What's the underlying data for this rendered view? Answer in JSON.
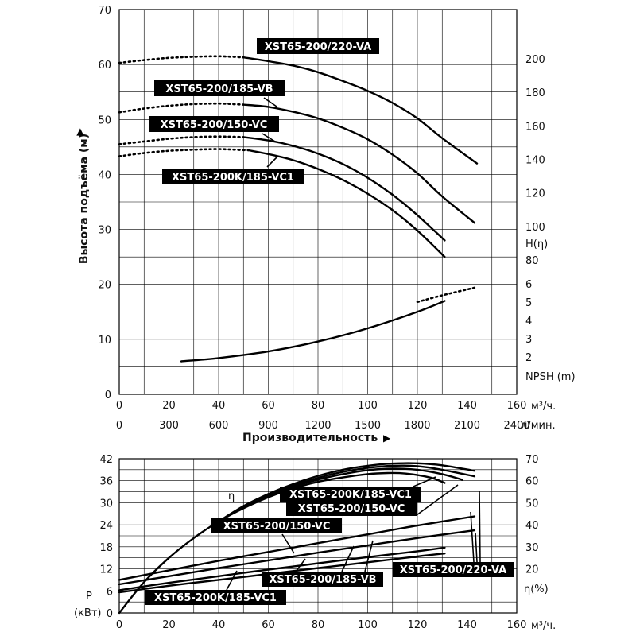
{
  "chart_data": [
    {
      "type": "line",
      "xlabel": "Производительность",
      "ylabel": "Высота подъёма (м)",
      "x_unit": "м³/ч.",
      "x2_unit": "л/мин.",
      "xlim": [
        0,
        160
      ],
      "ylim": [
        0,
        70
      ],
      "x_ticks": [
        0,
        20,
        40,
        60,
        80,
        100,
        120,
        140,
        160
      ],
      "x2_ticks": [
        "0",
        "300",
        "600",
        "900",
        "1200",
        "1500",
        "1800",
        "2100",
        "2400"
      ],
      "y_ticks": [
        0,
        10,
        20,
        30,
        40,
        50,
        60,
        70
      ],
      "right_head_label": "H(η)",
      "right_head_ticks": [
        80,
        100,
        120,
        140,
        160,
        180,
        200
      ],
      "right_npsh_label": "NPSH (m)",
      "right_npsh_ticks": [
        2,
        3,
        4,
        5,
        6
      ],
      "grid": true,
      "series": [
        {
          "name": "XST65-200/220-VA",
          "dotted": [
            [
              0,
              60.3
            ],
            [
              10,
              60.8
            ],
            [
              20,
              61.2
            ],
            [
              30,
              61.4
            ],
            [
              40,
              61.5
            ],
            [
              50,
              61.3
            ]
          ],
          "solid": [
            [
              50,
              61.3
            ],
            [
              60,
              60.6
            ],
            [
              70,
              59.8
            ],
            [
              80,
              58.6
            ],
            [
              90,
              57.0
            ],
            [
              100,
              55.2
            ],
            [
              110,
              53.0
            ],
            [
              120,
              50.2
            ],
            [
              130,
              46.6
            ],
            [
              144,
              42.0
            ]
          ]
        },
        {
          "name": "XST65-200/185-VB",
          "dotted": [
            [
              0,
              51.3
            ],
            [
              10,
              52.0
            ],
            [
              20,
              52.5
            ],
            [
              30,
              52.8
            ],
            [
              40,
              52.9
            ],
            [
              50,
              52.7
            ]
          ],
          "solid": [
            [
              50,
              52.7
            ],
            [
              60,
              52.3
            ],
            [
              70,
              51.4
            ],
            [
              80,
              50.2
            ],
            [
              90,
              48.5
            ],
            [
              100,
              46.4
            ],
            [
              110,
              43.6
            ],
            [
              120,
              40.2
            ],
            [
              130,
              36.0
            ],
            [
              143,
              31.2
            ]
          ]
        },
        {
          "name": "XST65-200/150-VC",
          "dotted": [
            [
              0,
              45.5
            ],
            [
              10,
              46.0
            ],
            [
              20,
              46.5
            ],
            [
              30,
              46.8
            ],
            [
              40,
              46.9
            ],
            [
              50,
              46.8
            ]
          ],
          "solid": [
            [
              50,
              46.8
            ],
            [
              60,
              46.2
            ],
            [
              70,
              45.2
            ],
            [
              80,
              43.8
            ],
            [
              90,
              41.9
            ],
            [
              100,
              39.4
            ],
            [
              110,
              36.3
            ],
            [
              120,
              32.6
            ],
            [
              131,
              28.0
            ]
          ]
        },
        {
          "name": "XST65-200K/185-VC1",
          "dotted": [
            [
              0,
              43.3
            ],
            [
              10,
              43.9
            ],
            [
              20,
              44.3
            ],
            [
              30,
              44.5
            ],
            [
              40,
              44.6
            ],
            [
              52,
              44.4
            ]
          ],
          "solid": [
            [
              52,
              44.4
            ],
            [
              60,
              43.7
            ],
            [
              70,
              42.6
            ],
            [
              80,
              41.0
            ],
            [
              90,
              39.0
            ],
            [
              100,
              36.5
            ],
            [
              110,
              33.5
            ],
            [
              120,
              29.8
            ],
            [
              131,
              25.0
            ]
          ]
        },
        {
          "name": "NPSH",
          "dotted": [
            [
              120,
              16.8
            ],
            [
              130,
              18.0
            ],
            [
              143,
              19.4
            ]
          ],
          "solid": [
            [
              25,
              6.0
            ],
            [
              40,
              6.6
            ],
            [
              60,
              7.8
            ],
            [
              80,
              9.6
            ],
            [
              100,
              12.0
            ],
            [
              120,
              15.0
            ],
            [
              131,
              17.0
            ]
          ]
        }
      ]
    },
    {
      "type": "line",
      "xlabel": "",
      "ylabel": "P (кВт)",
      "ylabel_line1": "P",
      "ylabel_line2": "(кВт)",
      "x_unit": "м³/ч.",
      "xlim": [
        0,
        160
      ],
      "ylim": [
        0,
        42
      ],
      "x_ticks": [
        0,
        20,
        40,
        60,
        80,
        100,
        120,
        140,
        160
      ],
      "y_ticks": [
        0,
        6,
        12,
        18,
        24,
        30,
        36,
        42
      ],
      "right_label": "η(%)",
      "right_ticks": [
        20,
        30,
        40,
        50,
        60,
        70
      ],
      "right_lim": [
        0,
        70
      ],
      "eta_symbol": "η",
      "grid": true,
      "series": [
        {
          "name": "η XST65-200K/185-VC1",
          "axis": "right",
          "points": [
            [
              0,
              0
            ],
            [
              10,
              14
            ],
            [
              20,
              25
            ],
            [
              30,
              34
            ],
            [
              40,
              41.5
            ],
            [
              50,
              47.5
            ],
            [
              60,
              52.5
            ],
            [
              70,
              56.5
            ],
            [
              80,
              59.5
            ],
            [
              90,
              61.5
            ],
            [
              100,
              63.0
            ],
            [
              108,
              63.5
            ],
            [
              115,
              63.3
            ],
            [
              125,
              61.5
            ],
            [
              131,
              59.0
            ]
          ]
        },
        {
          "name": "η XST65-200/150-VC",
          "axis": "right",
          "points": [
            [
              40,
              41.5
            ],
            [
              50,
              48
            ],
            [
              60,
              53
            ],
            [
              70,
              57.2
            ],
            [
              80,
              60.5
            ],
            [
              90,
              63
            ],
            [
              100,
              64.8
            ],
            [
              110,
              65.5
            ],
            [
              120,
              65
            ],
            [
              130,
              63
            ],
            [
              138,
              60.5
            ]
          ]
        },
        {
          "name": "η XST65-200/185-VB",
          "axis": "right",
          "points": [
            [
              40,
              41.5
            ],
            [
              50,
              48.3
            ],
            [
              60,
              53.5
            ],
            [
              70,
              57.8
            ],
            [
              80,
              61.3
            ],
            [
              90,
              64
            ],
            [
              100,
              65.8
            ],
            [
              110,
              66.8
            ],
            [
              120,
              66.6
            ],
            [
              130,
              65
            ],
            [
              143,
              62
            ]
          ]
        },
        {
          "name": "η XST65-200/220-VA",
          "axis": "right",
          "points": [
            [
              40,
              41.5
            ],
            [
              50,
              48.5
            ],
            [
              60,
              54
            ],
            [
              70,
              58.5
            ],
            [
              80,
              62.2
            ],
            [
              90,
              65
            ],
            [
              100,
              66.8
            ],
            [
              110,
              67.8
            ],
            [
              120,
              67.9
            ],
            [
              130,
              67
            ],
            [
              143,
              64.5
            ]
          ]
        },
        {
          "name": "P XST65-200/220-VA",
          "axis": "left",
          "points": [
            [
              0,
              9.0
            ],
            [
              20,
              11.6
            ],
            [
              40,
              14.2
            ],
            [
              60,
              16.6
            ],
            [
              80,
              19.0
            ],
            [
              100,
              21.4
            ],
            [
              120,
              23.8
            ],
            [
              143,
              26.3
            ]
          ]
        },
        {
          "name": "P XST65-200/185-VB",
          "axis": "left",
          "points": [
            [
              0,
              7.8
            ],
            [
              20,
              10.0
            ],
            [
              40,
              12.2
            ],
            [
              60,
              14.3
            ],
            [
              80,
              16.4
            ],
            [
              100,
              18.4
            ],
            [
              120,
              20.4
            ],
            [
              143,
              22.5
            ]
          ]
        },
        {
          "name": "P XST65-200/150-VC",
          "axis": "left",
          "points": [
            [
              0,
              6.2
            ],
            [
              20,
              8.2
            ],
            [
              40,
              10.0
            ],
            [
              60,
              11.8
            ],
            [
              80,
              13.5
            ],
            [
              100,
              15.2
            ],
            [
              120,
              16.8
            ],
            [
              131,
              17.8
            ]
          ]
        },
        {
          "name": "P XST65-200K/185-VC1",
          "axis": "left",
          "points": [
            [
              0,
              5.6
            ],
            [
              20,
              7.4
            ],
            [
              40,
              9.0
            ],
            [
              60,
              10.6
            ],
            [
              80,
              12.2
            ],
            [
              100,
              13.8
            ],
            [
              120,
              15.4
            ],
            [
              131,
              16.2
            ]
          ]
        }
      ]
    }
  ],
  "labels": {
    "top_va": "XST65-200/220-VA",
    "top_vb": "XST65-200/185-VB",
    "top_vc": "XST65-200/150-VC",
    "top_vc1": "XST65-200K/185-VC1",
    "bot_vc1_eta": "XST65-200K/185-VC1",
    "bot_vc_eta": "XST65-200/150-VC",
    "bot_vc_p": "XST65-200/150-VC",
    "bot_vb": "XST65-200/185-VB",
    "bot_va": "XST65-200/220-VA",
    "bot_vc1_p": "XST65-200K/185-VC1"
  }
}
